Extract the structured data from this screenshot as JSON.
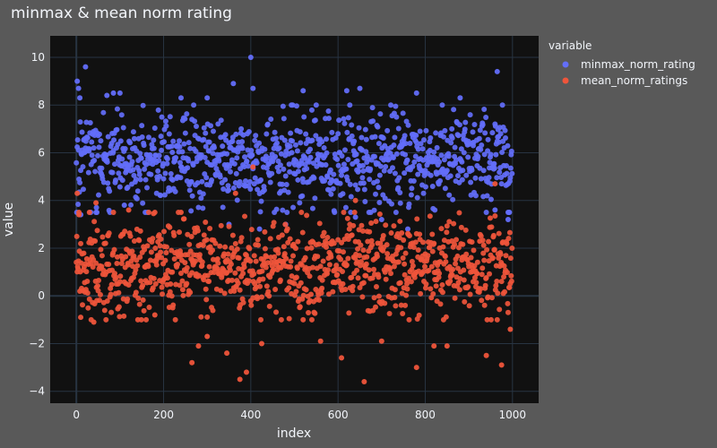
{
  "chart_data": {
    "type": "scatter",
    "title": "minmax & mean norm rating",
    "xlabel": "index",
    "ylabel": "value",
    "xlim": [
      -60,
      1060
    ],
    "ylim": [
      -4.5,
      10.9
    ],
    "x_ticks": [
      0,
      200,
      400,
      600,
      800,
      1000
    ],
    "y_ticks": [
      -4,
      -2,
      0,
      2,
      4,
      6,
      8,
      10
    ],
    "grid": true,
    "legend": {
      "title": "variable",
      "placement": "top-right"
    },
    "n_points_per_series": 1000,
    "series": [
      {
        "name": "minmax_norm_rating",
        "color": "#636efa",
        "typical_range": [
          3.5,
          8.0
        ],
        "center": 5.7,
        "spread": 1.0,
        "highlighted_points": [
          {
            "x": 2,
            "y": 9.0
          },
          {
            "x": 5,
            "y": 8.7
          },
          {
            "x": 8,
            "y": 8.3
          },
          {
            "x": 21,
            "y": 9.6
          },
          {
            "x": 70,
            "y": 8.4
          },
          {
            "x": 85,
            "y": 8.5
          },
          {
            "x": 100,
            "y": 8.5
          },
          {
            "x": 240,
            "y": 8.3
          },
          {
            "x": 300,
            "y": 8.3
          },
          {
            "x": 360,
            "y": 8.9
          },
          {
            "x": 400,
            "y": 10.0
          },
          {
            "x": 405,
            "y": 8.7
          },
          {
            "x": 520,
            "y": 8.6
          },
          {
            "x": 620,
            "y": 8.6
          },
          {
            "x": 650,
            "y": 8.7
          },
          {
            "x": 780,
            "y": 8.5
          },
          {
            "x": 880,
            "y": 8.3
          },
          {
            "x": 965,
            "y": 9.4
          },
          {
            "x": 10,
            "y": 3.4
          },
          {
            "x": 110,
            "y": 3.8
          },
          {
            "x": 350,
            "y": 3.0
          },
          {
            "x": 420,
            "y": 2.8
          },
          {
            "x": 480,
            "y": 3.0
          },
          {
            "x": 640,
            "y": 3.3
          },
          {
            "x": 700,
            "y": 3.2
          },
          {
            "x": 760,
            "y": 2.8
          },
          {
            "x": 960,
            "y": 3.6
          },
          {
            "x": 990,
            "y": 3.2
          }
        ]
      },
      {
        "name": "mean_norm_ratings",
        "color": "#ef553b",
        "typical_range": [
          -1.0,
          3.5
        ],
        "center": 1.2,
        "spread": 1.0,
        "highlighted_points": [
          {
            "x": 2,
            "y": 4.3
          },
          {
            "x": 6,
            "y": 3.4
          },
          {
            "x": 30,
            "y": 3.5
          },
          {
            "x": 45,
            "y": 3.9
          },
          {
            "x": 120,
            "y": 3.6
          },
          {
            "x": 240,
            "y": 3.5
          },
          {
            "x": 405,
            "y": 5.4
          },
          {
            "x": 365,
            "y": 4.3
          },
          {
            "x": 640,
            "y": 4.0
          },
          {
            "x": 960,
            "y": 4.7
          },
          {
            "x": 10,
            "y": -0.9
          },
          {
            "x": 40,
            "y": -1.1
          },
          {
            "x": 180,
            "y": -0.8
          },
          {
            "x": 265,
            "y": -2.8
          },
          {
            "x": 280,
            "y": -2.1
          },
          {
            "x": 300,
            "y": -1.7
          },
          {
            "x": 345,
            "y": -2.4
          },
          {
            "x": 375,
            "y": -3.5
          },
          {
            "x": 390,
            "y": -3.2
          },
          {
            "x": 425,
            "y": -2.0
          },
          {
            "x": 560,
            "y": -1.9
          },
          {
            "x": 608,
            "y": -2.6
          },
          {
            "x": 660,
            "y": -3.6
          },
          {
            "x": 700,
            "y": -1.9
          },
          {
            "x": 780,
            "y": -3.0
          },
          {
            "x": 820,
            "y": -2.1
          },
          {
            "x": 850,
            "y": -2.1
          },
          {
            "x": 940,
            "y": -2.5
          },
          {
            "x": 975,
            "y": -2.9
          },
          {
            "x": 995,
            "y": -1.4
          }
        ]
      }
    ]
  }
}
